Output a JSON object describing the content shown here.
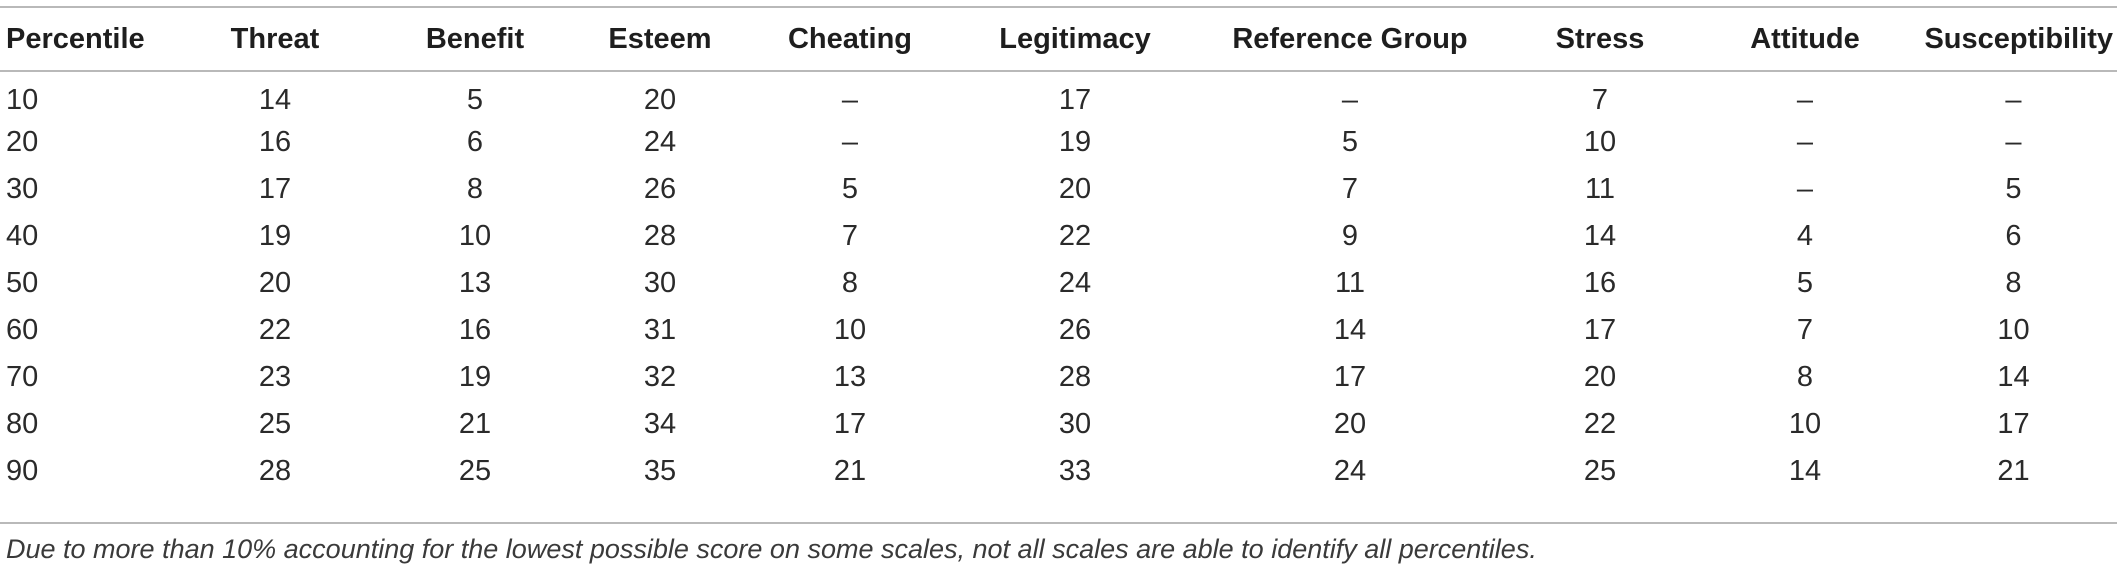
{
  "table": {
    "headers": [
      "Percentile",
      "Threat",
      "Benefit",
      "Esteem",
      "Cheating",
      "Legitimacy",
      "Reference Group",
      "Stress",
      "Attitude",
      "Susceptibility"
    ],
    "rows": [
      [
        "10",
        "14",
        "5",
        "20",
        "–",
        "17",
        "–",
        "7",
        "–",
        "–"
      ],
      [
        "20",
        "16",
        "6",
        "24",
        "–",
        "19",
        "5",
        "10",
        "–",
        "–"
      ],
      [
        "30",
        "17",
        "8",
        "26",
        "5",
        "20",
        "7",
        "11",
        "–",
        "5"
      ],
      [
        "40",
        "19",
        "10",
        "28",
        "7",
        "22",
        "9",
        "14",
        "4",
        "6"
      ],
      [
        "50",
        "20",
        "13",
        "30",
        "8",
        "24",
        "11",
        "16",
        "5",
        "8"
      ],
      [
        "60",
        "22",
        "16",
        "31",
        "10",
        "26",
        "14",
        "17",
        "7",
        "10"
      ],
      [
        "70",
        "23",
        "19",
        "32",
        "13",
        "28",
        "17",
        "20",
        "8",
        "14"
      ],
      [
        "80",
        "25",
        "21",
        "34",
        "17",
        "30",
        "20",
        "22",
        "10",
        "17"
      ],
      [
        "90",
        "28",
        "25",
        "35",
        "21",
        "33",
        "24",
        "25",
        "14",
        "21"
      ]
    ]
  },
  "footnote": "Due to more than 10% accounting for the lowest possible score on some scales, not all scales are able to identify all percentiles."
}
